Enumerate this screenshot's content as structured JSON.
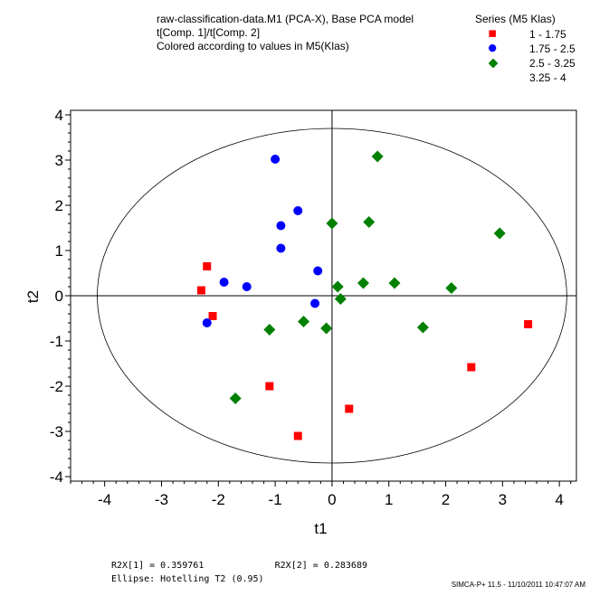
{
  "title": {
    "line1": "raw-classification-data.M1 (PCA-X), Base PCA model",
    "line2": "t[Comp. 1]/t[Comp. 2]",
    "line3": "Colored according to values in M5(Klas)"
  },
  "legend": {
    "title": "Series (M5 Klas)",
    "placement": "top-right"
  },
  "stats": {
    "r2x1": "R2X[1] = 0.359761",
    "r2x2": "R2X[2] = 0.283689",
    "ellipse": "Ellipse: Hotelling T2 (0.95)"
  },
  "footer": "SIMCA-P+ 11.5 - 11/10/2011 10:47:07 AM",
  "chart_data": {
    "type": "scatter",
    "xlabel": "t1",
    "ylabel": "t2",
    "xlim": [
      -4.6,
      4.3
    ],
    "ylim": [
      -4.1,
      4.1
    ],
    "xticks": [
      -4,
      -3,
      -2,
      -1,
      0,
      1,
      2,
      3,
      4
    ],
    "yticks": [
      -4,
      -3,
      -2,
      -1,
      0,
      1,
      2,
      3,
      4
    ],
    "ellipse": {
      "center": [
        0,
        0
      ],
      "rx": 4.13,
      "ry": 3.7
    },
    "grid": false,
    "series": [
      {
        "name": "1 - 1.75",
        "marker": "square",
        "color": "#ff0000",
        "points": [
          [
            -2.2,
            0.65
          ],
          [
            -2.3,
            0.12
          ],
          [
            -2.1,
            -0.45
          ],
          [
            -1.1,
            -2.0
          ],
          [
            -0.6,
            -3.1
          ],
          [
            0.3,
            -2.5
          ],
          [
            2.45,
            -1.58
          ],
          [
            3.45,
            -0.63
          ]
        ]
      },
      {
        "name": "1.75 - 2.5",
        "marker": "circle",
        "color": "#0000ff",
        "points": [
          [
            -1.0,
            3.02
          ],
          [
            -0.6,
            1.88
          ],
          [
            -0.9,
            1.55
          ],
          [
            -0.9,
            1.05
          ],
          [
            -0.25,
            0.55
          ],
          [
            -1.9,
            0.3
          ],
          [
            -1.5,
            0.2
          ],
          [
            -2.2,
            -0.6
          ],
          [
            -0.3,
            -0.17
          ]
        ]
      },
      {
        "name": "2.5 - 3.25",
        "marker": "diamond",
        "color": "#008000",
        "points": [
          [
            0.8,
            3.08
          ],
          [
            0.0,
            1.6
          ],
          [
            0.65,
            1.63
          ],
          [
            2.95,
            1.38
          ],
          [
            0.1,
            0.2
          ],
          [
            0.55,
            0.28
          ],
          [
            1.1,
            0.28
          ],
          [
            2.1,
            0.17
          ],
          [
            0.15,
            -0.07
          ],
          [
            -0.5,
            -0.57
          ],
          [
            -1.1,
            -0.75
          ],
          [
            -0.1,
            -0.72
          ],
          [
            1.6,
            -0.7
          ],
          [
            -1.7,
            -2.27
          ]
        ]
      },
      {
        "name": "3.25 - 4",
        "marker": "none",
        "color": "#000000",
        "points": []
      }
    ]
  }
}
